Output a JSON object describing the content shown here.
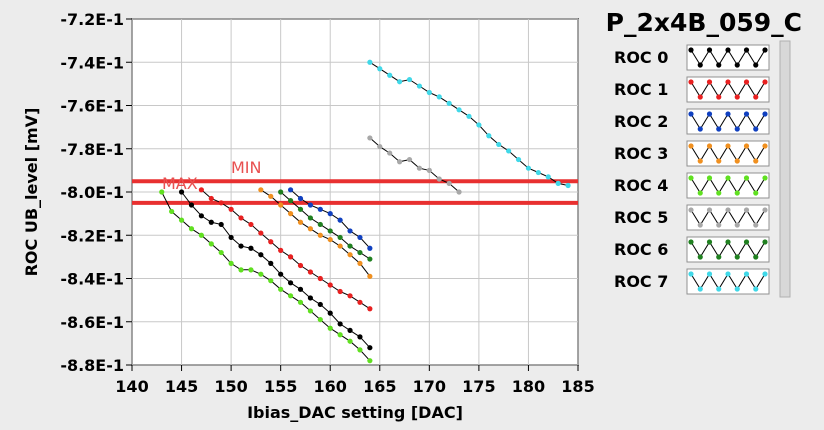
{
  "chart_data": {
    "type": "line",
    "title": "P_2x4B_059_C",
    "xlabel": "Ibias_DAC setting [DAC]",
    "ylabel": "ROC UB_level [mV]",
    "xlim": [
      140,
      185
    ],
    "ylim": [
      -0.88,
      -0.72
    ],
    "xticks": [
      140,
      145,
      150,
      155,
      160,
      165,
      170,
      175,
      180,
      185
    ],
    "xtick_labels": [
      "140",
      "145",
      "150",
      "155",
      "160",
      "165",
      "170",
      "175",
      "180",
      "185"
    ],
    "yticks": [
      -0.72,
      -0.74,
      -0.76,
      -0.78,
      -0.8,
      -0.82,
      -0.84,
      -0.86,
      -0.88
    ],
    "ytick_labels": [
      "-7.2E-1",
      "-7.4E-1",
      "-7.6E-1",
      "-7.8E-1",
      "-8.0E-1",
      "-8.2E-1",
      "-8.4E-1",
      "-8.6E-1",
      "-8.8E-1"
    ],
    "grid": true,
    "legend_position": "right",
    "limits": [
      {
        "label": "MIN",
        "value": -0.795,
        "color": "#e83030"
      },
      {
        "label": "MAX",
        "value": -0.805,
        "color": "#e83030"
      }
    ],
    "series": [
      {
        "name": "ROC 0",
        "color": "#000000",
        "x": [
          145,
          146,
          147,
          148,
          149,
          150,
          151,
          152,
          153,
          154,
          155,
          156,
          157,
          158,
          159,
          160,
          161,
          162,
          163,
          164
        ],
        "y": [
          -0.8,
          -0.806,
          -0.811,
          -0.814,
          -0.815,
          -0.821,
          -0.825,
          -0.826,
          -0.829,
          -0.833,
          -0.838,
          -0.842,
          -0.845,
          -0.849,
          -0.852,
          -0.856,
          -0.861,
          -0.864,
          -0.867,
          -0.872
        ]
      },
      {
        "name": "ROC 1",
        "color": "#e82020",
        "x": [
          147,
          148,
          149,
          150,
          151,
          152,
          153,
          154,
          155,
          156,
          157,
          158,
          159,
          160,
          161,
          162,
          163,
          164
        ],
        "y": [
          -0.799,
          -0.803,
          -0.805,
          -0.808,
          -0.812,
          -0.815,
          -0.819,
          -0.823,
          -0.827,
          -0.83,
          -0.834,
          -0.837,
          -0.84,
          -0.843,
          -0.846,
          -0.848,
          -0.851,
          -0.854
        ]
      },
      {
        "name": "ROC 2",
        "color": "#1040c0",
        "x": [
          156,
          157,
          158,
          159,
          160,
          161,
          162,
          163,
          164
        ],
        "y": [
          -0.799,
          -0.803,
          -0.806,
          -0.808,
          -0.81,
          -0.813,
          -0.818,
          -0.821,
          -0.826
        ]
      },
      {
        "name": "ROC 3",
        "color": "#f09020",
        "x": [
          153,
          154,
          155,
          156,
          157,
          158,
          159,
          160,
          161,
          162,
          163,
          164
        ],
        "y": [
          -0.799,
          -0.802,
          -0.806,
          -0.81,
          -0.814,
          -0.817,
          -0.82,
          -0.822,
          -0.825,
          -0.829,
          -0.833,
          -0.839
        ]
      },
      {
        "name": "ROC 4",
        "color": "#60e020",
        "x": [
          143,
          144,
          145,
          146,
          147,
          148,
          149,
          150,
          151,
          152,
          153,
          154,
          155,
          156,
          157,
          158,
          159,
          160,
          161,
          162,
          163,
          164
        ],
        "y": [
          -0.8,
          -0.809,
          -0.813,
          -0.817,
          -0.82,
          -0.824,
          -0.828,
          -0.833,
          -0.836,
          -0.836,
          -0.838,
          -0.841,
          -0.845,
          -0.848,
          -0.851,
          -0.855,
          -0.859,
          -0.863,
          -0.866,
          -0.869,
          -0.873,
          -0.878
        ]
      },
      {
        "name": "ROC 5",
        "color": "#a8a8a8",
        "x": [
          164,
          165,
          166,
          167,
          168,
          169,
          170,
          171,
          172,
          173
        ],
        "y": [
          -0.775,
          -0.779,
          -0.782,
          -0.786,
          -0.785,
          -0.789,
          -0.79,
          -0.794,
          -0.796,
          -0.8
        ]
      },
      {
        "name": "ROC 6",
        "color": "#208020",
        "x": [
          155,
          156,
          157,
          158,
          159,
          160,
          161,
          162,
          163,
          164
        ],
        "y": [
          -0.8,
          -0.804,
          -0.808,
          -0.812,
          -0.815,
          -0.818,
          -0.821,
          -0.825,
          -0.828,
          -0.831
        ]
      },
      {
        "name": "ROC 7",
        "color": "#40d8e8",
        "x": [
          164,
          165,
          166,
          167,
          168,
          169,
          170,
          171,
          172,
          173,
          174,
          175,
          176,
          177,
          178,
          179,
          180,
          181,
          182,
          183,
          184
        ],
        "y": [
          -0.74,
          -0.743,
          -0.746,
          -0.749,
          -0.748,
          -0.751,
          -0.754,
          -0.756,
          -0.759,
          -0.762,
          -0.765,
          -0.769,
          -0.774,
          -0.778,
          -0.781,
          -0.785,
          -0.789,
          -0.791,
          -0.793,
          -0.796,
          -0.797
        ]
      }
    ]
  }
}
